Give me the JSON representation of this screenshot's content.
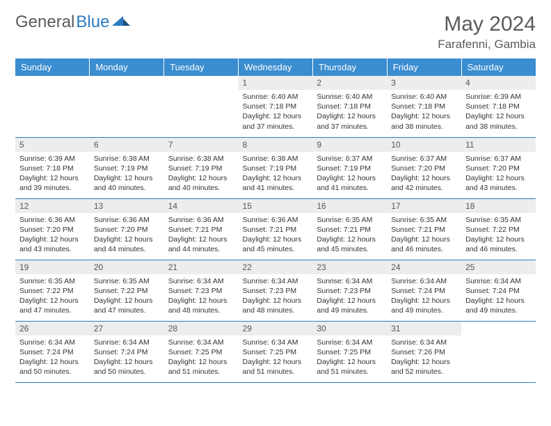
{
  "brand": {
    "part1": "General",
    "part2": "Blue"
  },
  "title": "May 2024",
  "location": "Farafenni, Gambia",
  "colors": {
    "header_bg": "#3a8dd0",
    "header_text": "#ffffff",
    "border": "#2d7bbf",
    "daynum_bg": "#ededed",
    "text": "#333333",
    "brand_gray": "#5a5a5a",
    "brand_blue": "#2d7bbf"
  },
  "weekdays": [
    "Sunday",
    "Monday",
    "Tuesday",
    "Wednesday",
    "Thursday",
    "Friday",
    "Saturday"
  ],
  "weeks": [
    [
      null,
      null,
      null,
      {
        "n": "1",
        "sr": "6:40 AM",
        "ss": "7:18 PM",
        "dl": "12 hours and 37 minutes."
      },
      {
        "n": "2",
        "sr": "6:40 AM",
        "ss": "7:18 PM",
        "dl": "12 hours and 37 minutes."
      },
      {
        "n": "3",
        "sr": "6:40 AM",
        "ss": "7:18 PM",
        "dl": "12 hours and 38 minutes."
      },
      {
        "n": "4",
        "sr": "6:39 AM",
        "ss": "7:18 PM",
        "dl": "12 hours and 38 minutes."
      }
    ],
    [
      {
        "n": "5",
        "sr": "6:39 AM",
        "ss": "7:18 PM",
        "dl": "12 hours and 39 minutes."
      },
      {
        "n": "6",
        "sr": "6:38 AM",
        "ss": "7:19 PM",
        "dl": "12 hours and 40 minutes."
      },
      {
        "n": "7",
        "sr": "6:38 AM",
        "ss": "7:19 PM",
        "dl": "12 hours and 40 minutes."
      },
      {
        "n": "8",
        "sr": "6:38 AM",
        "ss": "7:19 PM",
        "dl": "12 hours and 41 minutes."
      },
      {
        "n": "9",
        "sr": "6:37 AM",
        "ss": "7:19 PM",
        "dl": "12 hours and 41 minutes."
      },
      {
        "n": "10",
        "sr": "6:37 AM",
        "ss": "7:20 PM",
        "dl": "12 hours and 42 minutes."
      },
      {
        "n": "11",
        "sr": "6:37 AM",
        "ss": "7:20 PM",
        "dl": "12 hours and 43 minutes."
      }
    ],
    [
      {
        "n": "12",
        "sr": "6:36 AM",
        "ss": "7:20 PM",
        "dl": "12 hours and 43 minutes."
      },
      {
        "n": "13",
        "sr": "6:36 AM",
        "ss": "7:20 PM",
        "dl": "12 hours and 44 minutes."
      },
      {
        "n": "14",
        "sr": "6:36 AM",
        "ss": "7:21 PM",
        "dl": "12 hours and 44 minutes."
      },
      {
        "n": "15",
        "sr": "6:36 AM",
        "ss": "7:21 PM",
        "dl": "12 hours and 45 minutes."
      },
      {
        "n": "16",
        "sr": "6:35 AM",
        "ss": "7:21 PM",
        "dl": "12 hours and 45 minutes."
      },
      {
        "n": "17",
        "sr": "6:35 AM",
        "ss": "7:21 PM",
        "dl": "12 hours and 46 minutes."
      },
      {
        "n": "18",
        "sr": "6:35 AM",
        "ss": "7:22 PM",
        "dl": "12 hours and 46 minutes."
      }
    ],
    [
      {
        "n": "19",
        "sr": "6:35 AM",
        "ss": "7:22 PM",
        "dl": "12 hours and 47 minutes."
      },
      {
        "n": "20",
        "sr": "6:35 AM",
        "ss": "7:22 PM",
        "dl": "12 hours and 47 minutes."
      },
      {
        "n": "21",
        "sr": "6:34 AM",
        "ss": "7:23 PM",
        "dl": "12 hours and 48 minutes."
      },
      {
        "n": "22",
        "sr": "6:34 AM",
        "ss": "7:23 PM",
        "dl": "12 hours and 48 minutes."
      },
      {
        "n": "23",
        "sr": "6:34 AM",
        "ss": "7:23 PM",
        "dl": "12 hours and 49 minutes."
      },
      {
        "n": "24",
        "sr": "6:34 AM",
        "ss": "7:24 PM",
        "dl": "12 hours and 49 minutes."
      },
      {
        "n": "25",
        "sr": "6:34 AM",
        "ss": "7:24 PM",
        "dl": "12 hours and 49 minutes."
      }
    ],
    [
      {
        "n": "26",
        "sr": "6:34 AM",
        "ss": "7:24 PM",
        "dl": "12 hours and 50 minutes."
      },
      {
        "n": "27",
        "sr": "6:34 AM",
        "ss": "7:24 PM",
        "dl": "12 hours and 50 minutes."
      },
      {
        "n": "28",
        "sr": "6:34 AM",
        "ss": "7:25 PM",
        "dl": "12 hours and 51 minutes."
      },
      {
        "n": "29",
        "sr": "6:34 AM",
        "ss": "7:25 PM",
        "dl": "12 hours and 51 minutes."
      },
      {
        "n": "30",
        "sr": "6:34 AM",
        "ss": "7:25 PM",
        "dl": "12 hours and 51 minutes."
      },
      {
        "n": "31",
        "sr": "6:34 AM",
        "ss": "7:26 PM",
        "dl": "12 hours and 52 minutes."
      },
      null
    ]
  ],
  "labels": {
    "sunrise": "Sunrise:",
    "sunset": "Sunset:",
    "daylight": "Daylight:"
  }
}
